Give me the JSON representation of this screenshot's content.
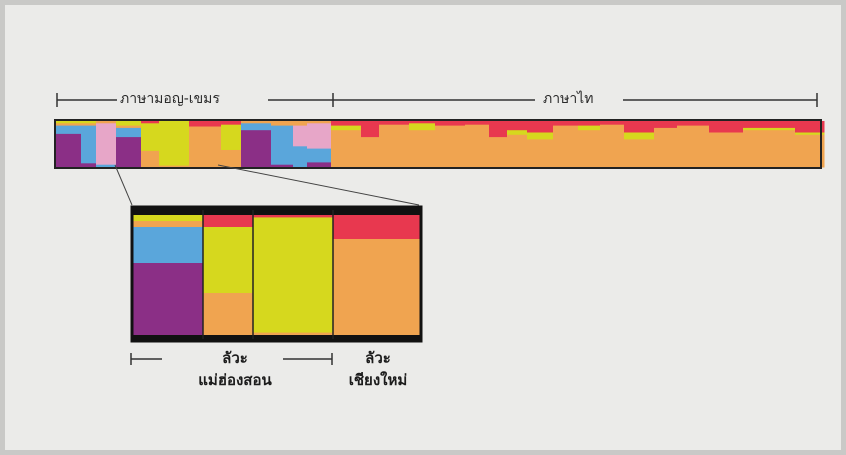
{
  "labels": {
    "austroasiatic": "ภาษามอญ-เขมร",
    "tai": "ภาษาไท",
    "lawa_mhs_line1": "ลัวะ",
    "lawa_mhs_line2": "แม่ฮ่องสอน",
    "lawa_cm_line1": "ลัวะ",
    "lawa_cm_line2": "เชียงใหม่"
  },
  "colors": {
    "purple": "#8b2f86",
    "blue": "#5aa6db",
    "pink": "#e7a6c8",
    "yellow": "#d6d81e",
    "orange": "#f0a450",
    "red": "#e8384f"
  },
  "top_bar_groups": [
    {
      "name": "mk-1",
      "comp": {
        "purple": 0.72,
        "blue": 0.18,
        "yellow": 0.05,
        "orange": 0.05
      }
    },
    {
      "name": "mk-2",
      "comp": {
        "blue": 0.82,
        "purple": 0.08,
        "yellow": 0.05,
        "orange": 0.05
      }
    },
    {
      "name": "mk-3",
      "comp": {
        "pink": 0.9,
        "blue": 0.05,
        "orange": 0.05
      }
    },
    {
      "name": "mk-4",
      "comp": {
        "purple": 0.65,
        "blue": 0.2,
        "yellow": 0.1,
        "orange": 0.05
      }
    },
    {
      "name": "mk-5",
      "comp": {
        "red": 0.05,
        "yellow": 0.6,
        "orange": 0.35
      }
    },
    {
      "name": "mk-6",
      "comp": {
        "yellow": 0.97,
        "orange": 0.03
      }
    },
    {
      "name": "mk-7",
      "comp": {
        "red": 0.12,
        "orange": 0.88
      }
    },
    {
      "name": "mk-8",
      "comp": {
        "red": 0.08,
        "yellow": 0.55,
        "orange": 0.37
      }
    },
    {
      "name": "mk-9",
      "comp": {
        "purple": 0.8,
        "blue": 0.15,
        "orange": 0.05
      }
    },
    {
      "name": "mk-10",
      "comp": {
        "blue": 0.85,
        "purple": 0.05,
        "orange": 0.1
      }
    },
    {
      "name": "mk-11",
      "comp": {
        "blue": 0.45,
        "pink": 0.45,
        "orange": 0.1
      }
    },
    {
      "name": "mk-12",
      "comp": {
        "pink": 0.55,
        "blue": 0.3,
        "purple": 0.1,
        "orange": 0.05
      }
    },
    {
      "name": "tai-1",
      "comp": {
        "red": 0.1,
        "yellow": 0.1,
        "orange": 0.8
      }
    },
    {
      "name": "tai-2",
      "comp": {
        "red": 0.35,
        "orange": 0.65
      }
    },
    {
      "name": "tai-3",
      "comp": {
        "red": 0.08,
        "orange": 0.92
      }
    },
    {
      "name": "tai-4",
      "comp": {
        "red": 0.05,
        "yellow": 0.15,
        "orange": 0.8
      }
    },
    {
      "name": "tai-5",
      "comp": {
        "red": 0.1,
        "orange": 0.9
      }
    },
    {
      "name": "tai-6",
      "comp": {
        "red": 0.08,
        "orange": 0.92
      }
    },
    {
      "name": "tai-7",
      "comp": {
        "red": 0.35,
        "orange": 0.65
      }
    },
    {
      "name": "tai-8",
      "comp": {
        "red": 0.2,
        "yellow": 0.1,
        "orange": 0.7
      }
    },
    {
      "name": "tai-9",
      "comp": {
        "red": 0.25,
        "yellow": 0.15,
        "orange": 0.6
      }
    },
    {
      "name": "tai-10",
      "comp": {
        "red": 0.1,
        "orange": 0.9
      }
    },
    {
      "name": "tai-11",
      "comp": {
        "red": 0.1,
        "yellow": 0.1,
        "orange": 0.8
      }
    },
    {
      "name": "tai-12",
      "comp": {
        "red": 0.08,
        "orange": 0.92
      }
    },
    {
      "name": "tai-13",
      "comp": {
        "red": 0.25,
        "yellow": 0.15,
        "orange": 0.6
      }
    },
    {
      "name": "tai-14",
      "comp": {
        "red": 0.15,
        "orange": 0.85
      }
    },
    {
      "name": "tai-15",
      "comp": {
        "red": 0.1,
        "orange": 0.9
      }
    },
    {
      "name": "tai-16",
      "comp": {
        "red": 0.25,
        "orange": 0.75
      }
    },
    {
      "name": "tai-17",
      "comp": {
        "red": 0.15,
        "yellow": 0.05,
        "orange": 0.8
      }
    },
    {
      "name": "tai-18",
      "comp": {
        "red": 0.25,
        "yellow": 0.05,
        "orange": 0.7
      }
    }
  ],
  "inset_groups": [
    {
      "name": "lawa-mhs-a",
      "comp": {
        "purple": 0.6,
        "blue": 0.3,
        "yellow": 0.05,
        "orange": 0.05
      }
    },
    {
      "name": "lawa-mhs-b",
      "comp": {
        "red": 0.1,
        "yellow": 0.55,
        "orange": 0.35
      }
    },
    {
      "name": "lawa-mhs-c",
      "comp": {
        "red": 0.02,
        "yellow": 0.96,
        "orange": 0.02
      }
    },
    {
      "name": "lawa-cm",
      "comp": {
        "red": 0.2,
        "orange": 0.8
      }
    }
  ]
}
